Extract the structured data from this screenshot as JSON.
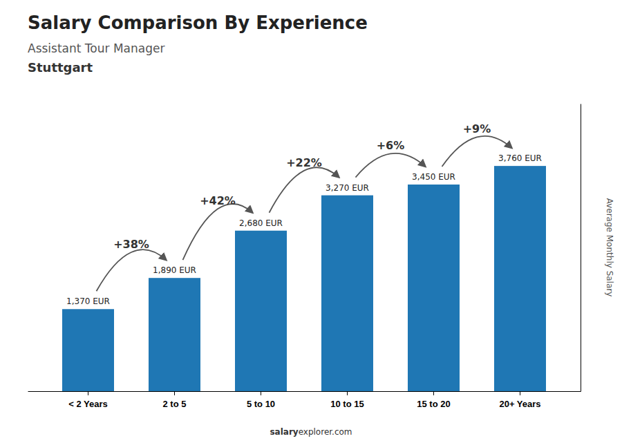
{
  "chart_data": {
    "type": "bar",
    "title": "Salary Comparison By Experience",
    "subtitle": [
      "Assistant Tour Manager",
      "Stuttgart"
    ],
    "ylabel": "Average Monthly Salary",
    "categories": [
      "< 2 Years",
      "2 to 5",
      "5 to 10",
      "10 to 15",
      "15 to 20",
      "20+ Years"
    ],
    "values": [
      1370,
      1890,
      2680,
      3270,
      3450,
      3760
    ],
    "value_labels": [
      "1,370 EUR",
      "1,890 EUR",
      "2,680 EUR",
      "3,270 EUR",
      "3,450 EUR",
      "3,760 EUR"
    ],
    "data_labels": true,
    "annotations": [
      "+38%",
      "+42%",
      "+22%",
      "+6%",
      "+9%"
    ],
    "source": [
      "salary",
      "explorer.com"
    ],
    "ylim": [
      0,
      4800
    ],
    "tick_labels": "x"
  }
}
